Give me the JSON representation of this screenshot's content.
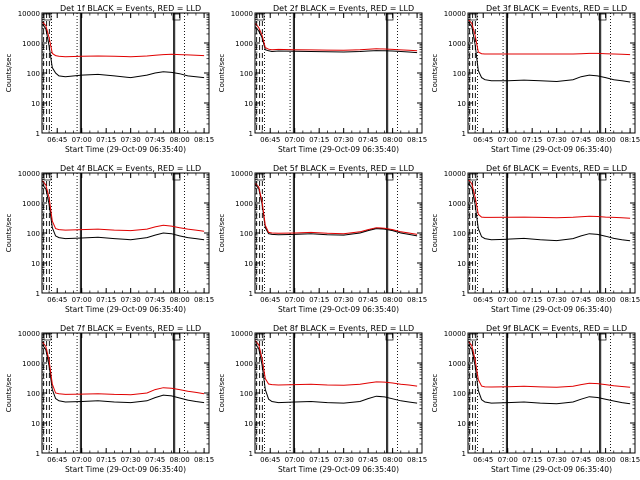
{
  "chart_data": {
    "type": "line",
    "colors": {
      "events": "#000000",
      "lld": "#e00000",
      "axes": "#000000"
    },
    "x_ticks": [
      "06:45",
      "07:00",
      "07:15",
      "07:30",
      "07:45",
      "08:00",
      "08:15"
    ],
    "y_ticks": [
      "1",
      "10",
      "100",
      "1000",
      "10000"
    ],
    "xlim": [
      "06:35:40",
      "08:18"
    ],
    "ylim": [
      1,
      10000
    ],
    "y_scale": "log",
    "xlabel": "Start Time (29-Oct-09 06:35:40)",
    "ylabel": "Counts/sec",
    "panels": [
      {
        "title": "Det 1f BLACK = Events, RED = LLD",
        "series": [
          {
            "name": "Events",
            "color": "#000000",
            "x": [
              "06:36",
              "06:38",
              "06:40",
              "06:42",
              "06:44",
              "06:46",
              "06:50",
              "07:00",
              "07:10",
              "07:20",
              "07:30",
              "07:40",
              "07:45",
              "07:50",
              "07:55",
              "08:00",
              "08:05",
              "08:10",
              "08:15"
            ],
            "y": [
              4200,
              3000,
              800,
              150,
              100,
              80,
              75,
              85,
              90,
              80,
              70,
              85,
              100,
              110,
              105,
              95,
              80,
              75,
              70
            ]
          },
          {
            "name": "LLD",
            "color": "#e00000",
            "x": [
              "06:36",
              "06:38",
              "06:40",
              "06:42",
              "06:44",
              "06:46",
              "06:50",
              "07:00",
              "07:10",
              "07:20",
              "07:30",
              "07:40",
              "07:45",
              "07:50",
              "07:55",
              "08:00",
              "08:05",
              "08:10",
              "08:15"
            ],
            "y": [
              5000,
              3800,
              1500,
              450,
              380,
              360,
              350,
              360,
              370,
              360,
              350,
              370,
              390,
              410,
              420,
              410,
              400,
              390,
              380
            ]
          }
        ]
      },
      {
        "title": "Det 2f BLACK = Events, RED = LLD",
        "series": [
          {
            "name": "Events",
            "color": "#000000",
            "x": [
              "06:36",
              "06:38",
              "06:40",
              "06:42",
              "06:44",
              "06:46",
              "06:50",
              "07:00",
              "07:10",
              "07:20",
              "07:30",
              "07:40",
              "07:45",
              "07:50",
              "07:55",
              "08:00",
              "08:05",
              "08:10",
              "08:15"
            ],
            "y": [
              3500,
              2500,
              1500,
              600,
              550,
              520,
              540,
              530,
              520,
              510,
              500,
              520,
              540,
              560,
              550,
              540,
              520,
              500,
              480
            ]
          },
          {
            "name": "LLD",
            "color": "#e00000",
            "x": [
              "06:36",
              "06:38",
              "06:40",
              "06:42",
              "06:44",
              "06:46",
              "06:50",
              "07:00",
              "07:10",
              "07:20",
              "07:30",
              "07:40",
              "07:45",
              "07:50",
              "07:55",
              "08:00",
              "08:05",
              "08:10",
              "08:15"
            ],
            "y": [
              4500,
              3200,
              1800,
              700,
              620,
              600,
              610,
              600,
              590,
              580,
              570,
              600,
              620,
              640,
              630,
              610,
              590,
              570,
              550
            ]
          }
        ]
      },
      {
        "title": "Det 3f BLACK = Events, RED = LLD",
        "series": [
          {
            "name": "Events",
            "color": "#000000",
            "x": [
              "06:36",
              "06:38",
              "06:40",
              "06:42",
              "06:44",
              "06:46",
              "06:50",
              "07:00",
              "07:10",
              "07:20",
              "07:30",
              "07:40",
              "07:45",
              "07:50",
              "07:55",
              "08:00",
              "08:05",
              "08:10",
              "08:15"
            ],
            "y": [
              5000,
              3500,
              900,
              120,
              70,
              60,
              55,
              55,
              58,
              55,
              52,
              60,
              75,
              85,
              80,
              70,
              60,
              55,
              50
            ]
          },
          {
            "name": "LLD",
            "color": "#e00000",
            "x": [
              "06:36",
              "06:38",
              "06:40",
              "06:42",
              "06:44",
              "06:46",
              "06:50",
              "07:00",
              "07:10",
              "07:20",
              "07:30",
              "07:40",
              "07:45",
              "07:50",
              "07:55",
              "08:00",
              "08:05",
              "08:10",
              "08:15"
            ],
            "y": [
              6000,
              4500,
              1800,
              500,
              440,
              430,
              430,
              430,
              430,
              430,
              430,
              430,
              440,
              450,
              450,
              440,
              430,
              420,
              410
            ]
          }
        ]
      },
      {
        "title": "Det 4f BLACK = Events, RED = LLD",
        "series": [
          {
            "name": "Events",
            "color": "#000000",
            "x": [
              "06:36",
              "06:38",
              "06:40",
              "06:42",
              "06:44",
              "06:46",
              "06:50",
              "07:00",
              "07:10",
              "07:20",
              "07:30",
              "07:40",
              "07:45",
              "07:50",
              "07:55",
              "08:00",
              "08:05",
              "08:10",
              "08:15"
            ],
            "y": [
              4000,
              3000,
              900,
              150,
              80,
              70,
              65,
              68,
              72,
              65,
              60,
              70,
              85,
              100,
              95,
              80,
              70,
              65,
              60
            ]
          },
          {
            "name": "LLD",
            "color": "#e00000",
            "x": [
              "06:36",
              "06:38",
              "06:40",
              "06:42",
              "06:44",
              "06:46",
              "06:50",
              "07:00",
              "07:10",
              "07:20",
              "07:30",
              "07:40",
              "07:45",
              "07:50",
              "07:55",
              "08:00",
              "08:05",
              "08:10",
              "08:15"
            ],
            "y": [
              5500,
              4000,
              1500,
              250,
              140,
              130,
              125,
              130,
              135,
              125,
              120,
              135,
              160,
              180,
              170,
              150,
              135,
              125,
              115
            ]
          }
        ]
      },
      {
        "title": "Det 5f BLACK = Events, RED = LLD",
        "series": [
          {
            "name": "Events",
            "color": "#000000",
            "x": [
              "06:36",
              "06:38",
              "06:40",
              "06:42",
              "06:44",
              "06:46",
              "06:50",
              "07:00",
              "07:10",
              "07:20",
              "07:30",
              "07:40",
              "07:45",
              "07:50",
              "07:55",
              "08:00",
              "08:05",
              "08:10",
              "08:15"
            ],
            "y": [
              4000,
              3000,
              900,
              150,
              95,
              90,
              88,
              90,
              95,
              88,
              85,
              100,
              120,
              140,
              135,
              120,
              100,
              90,
              80
            ]
          },
          {
            "name": "LLD",
            "color": "#e00000",
            "x": [
              "06:36",
              "06:38",
              "06:40",
              "06:42",
              "06:44",
              "06:46",
              "06:50",
              "07:00",
              "07:10",
              "07:20",
              "07:30",
              "07:40",
              "07:45",
              "07:50",
              "07:55",
              "08:00",
              "08:05",
              "08:10",
              "08:15"
            ],
            "y": [
              4500,
              3400,
              1100,
              180,
              105,
              100,
              98,
              100,
              105,
              98,
              95,
              110,
              130,
              150,
              145,
              130,
              110,
              100,
              90
            ]
          }
        ]
      },
      {
        "title": "Det 6f BLACK = Events, RED = LLD",
        "series": [
          {
            "name": "Events",
            "color": "#000000",
            "x": [
              "06:36",
              "06:38",
              "06:40",
              "06:42",
              "06:44",
              "06:46",
              "06:50",
              "07:00",
              "07:10",
              "07:20",
              "07:30",
              "07:40",
              "07:45",
              "07:50",
              "07:55",
              "08:00",
              "08:05",
              "08:10",
              "08:15"
            ],
            "y": [
              4500,
              3200,
              900,
              140,
              75,
              65,
              60,
              62,
              66,
              60,
              56,
              65,
              80,
              95,
              90,
              78,
              66,
              60,
              55
            ]
          },
          {
            "name": "LLD",
            "color": "#e00000",
            "x": [
              "06:36",
              "06:38",
              "06:40",
              "06:42",
              "06:44",
              "06:46",
              "06:50",
              "07:00",
              "07:10",
              "07:20",
              "07:30",
              "07:40",
              "07:45",
              "07:50",
              "07:55",
              "08:00",
              "08:05",
              "08:10",
              "08:15"
            ],
            "y": [
              6000,
              4400,
              1600,
              420,
              340,
              330,
              330,
              335,
              340,
              330,
              320,
              335,
              350,
              360,
              355,
              340,
              330,
              320,
              310
            ]
          }
        ]
      },
      {
        "title": "Det 7f BLACK = Events, RED = LLD",
        "series": [
          {
            "name": "Events",
            "color": "#000000",
            "x": [
              "06:36",
              "06:38",
              "06:40",
              "06:42",
              "06:44",
              "06:46",
              "06:50",
              "07:00",
              "07:10",
              "07:20",
              "07:30",
              "07:40",
              "07:45",
              "07:50",
              "07:55",
              "08:00",
              "08:05",
              "08:10",
              "08:15"
            ],
            "y": [
              4000,
              2800,
              800,
              130,
              65,
              55,
              50,
              52,
              55,
              50,
              48,
              55,
              70,
              85,
              80,
              68,
              58,
              52,
              48
            ]
          },
          {
            "name": "LLD",
            "color": "#e00000",
            "x": [
              "06:36",
              "06:38",
              "06:40",
              "06:42",
              "06:44",
              "06:46",
              "06:50",
              "07:00",
              "07:10",
              "07:20",
              "07:30",
              "07:40",
              "07:45",
              "07:50",
              "07:55",
              "08:00",
              "08:05",
              "08:10",
              "08:15"
            ],
            "y": [
              5000,
              3600,
              1200,
              200,
              100,
              95,
              90,
              92,
              95,
              90,
              88,
              100,
              130,
              150,
              145,
              130,
              115,
              105,
              95
            ]
          }
        ]
      },
      {
        "title": "Det 8f BLACK = Events, RED = LLD",
        "series": [
          {
            "name": "Events",
            "color": "#000000",
            "x": [
              "06:36",
              "06:38",
              "06:40",
              "06:42",
              "06:44",
              "06:46",
              "06:50",
              "07:00",
              "07:10",
              "07:20",
              "07:30",
              "07:40",
              "07:45",
              "07:50",
              "07:55",
              "08:00",
              "08:05",
              "08:10",
              "08:15"
            ],
            "y": [
              4200,
              3000,
              850,
              130,
              62,
              52,
              48,
              50,
              52,
              48,
              46,
              52,
              65,
              78,
              74,
              64,
              55,
              50,
              46
            ]
          },
          {
            "name": "LLD",
            "color": "#e00000",
            "x": [
              "06:36",
              "06:38",
              "06:40",
              "06:42",
              "06:44",
              "06:46",
              "06:50",
              "07:00",
              "07:10",
              "07:20",
              "07:30",
              "07:40",
              "07:45",
              "07:50",
              "07:55",
              "08:00",
              "08:05",
              "08:10",
              "08:15"
            ],
            "y": [
              5500,
              4000,
              1400,
              300,
              200,
              190,
              185,
              190,
              195,
              185,
              180,
              195,
              215,
              235,
              230,
              215,
              195,
              185,
              170
            ]
          }
        ]
      },
      {
        "title": "Det 9f BLACK = Events, RED = LLD",
        "series": [
          {
            "name": "Events",
            "color": "#000000",
            "x": [
              "06:36",
              "06:38",
              "06:40",
              "06:42",
              "06:44",
              "06:46",
              "06:50",
              "07:00",
              "07:10",
              "07:20",
              "07:30",
              "07:40",
              "07:45",
              "07:50",
              "07:55",
              "08:00",
              "08:05",
              "08:10",
              "08:15"
            ],
            "y": [
              4000,
              2900,
              800,
              120,
              60,
              50,
              46,
              48,
              50,
              46,
              44,
              50,
              62,
              75,
              71,
              62,
              54,
              48,
              44
            ]
          },
          {
            "name": "LLD",
            "color": "#e00000",
            "x": [
              "06:36",
              "06:38",
              "06:40",
              "06:42",
              "06:44",
              "06:46",
              "06:50",
              "07:00",
              "07:10",
              "07:20",
              "07:30",
              "07:40",
              "07:45",
              "07:50",
              "07:55",
              "08:00",
              "08:05",
              "08:10",
              "08:15"
            ],
            "y": [
              5200,
              3800,
              1300,
              280,
              170,
              160,
              158,
              162,
              168,
              160,
              155,
              168,
              190,
              210,
              205,
              190,
              175,
              165,
              155
            ]
          }
        ]
      }
    ]
  }
}
